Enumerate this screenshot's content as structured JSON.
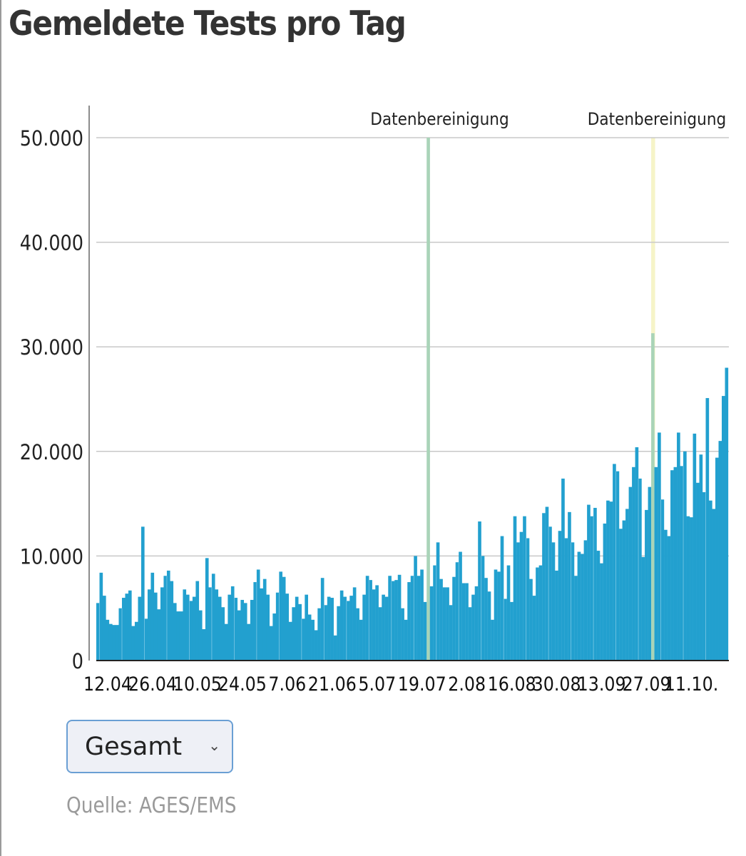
{
  "title": "Gemeldete Tests pro Tag",
  "dropdown": {
    "selected": "Gesamt"
  },
  "source": "Quelle: AGES/EMS",
  "colors": {
    "bar": "#22a0cf",
    "highlight_green": "#a9d4b8",
    "highlight_yellow": "#f6f4c8",
    "grid": "#c8c8c8"
  },
  "chart_data": {
    "type": "bar",
    "title": "Gemeldete Tests pro Tag",
    "xlabel": "",
    "ylabel": "",
    "ylim": [
      0,
      50000
    ],
    "yticks": [
      0,
      10000,
      20000,
      30000,
      40000,
      50000
    ],
    "ytick_labels": [
      "0",
      "10.000",
      "20.000",
      "30.000",
      "40.000",
      "50.000"
    ],
    "xtick_index_step": 14,
    "xtick_labels": [
      "12.04",
      "26.04",
      "10.05",
      "24.05",
      "7.06",
      "21.06",
      "5.07",
      "19.07",
      "2.08",
      "16.08",
      "30.08",
      "13.09",
      "27.09",
      "11.10."
    ],
    "grid": true,
    "values": [
      5500,
      8400,
      6200,
      3900,
      3500,
      3400,
      3400,
      5000,
      6000,
      6400,
      6700,
      3300,
      3700,
      6100,
      12800,
      4000,
      6800,
      8400,
      6500,
      4900,
      7000,
      8100,
      8600,
      7600,
      5500,
      4700,
      4700,
      6800,
      6300,
      5700,
      6100,
      7600,
      4800,
      3000,
      9800,
      7000,
      8300,
      6800,
      6100,
      5100,
      3500,
      6300,
      7100,
      6000,
      4800,
      5800,
      5500,
      3500,
      5800,
      7500,
      8700,
      6900,
      7800,
      6300,
      3300,
      4500,
      6500,
      8500,
      8000,
      6400,
      3700,
      5100,
      6100,
      5400,
      4000,
      6300,
      4400,
      3900,
      2900,
      5000,
      7900,
      5300,
      6100,
      6000,
      2400,
      5200,
      6700,
      6100,
      5700,
      6200,
      7000,
      5000,
      3900,
      6300,
      8100,
      7700,
      6800,
      7200,
      5100,
      6300,
      6100,
      8100,
      7600,
      7700,
      8200,
      5000,
      3900,
      7500,
      8100,
      10000,
      8100,
      8700,
      5600,
      50000,
      7100,
      9100,
      11300,
      7800,
      7000,
      7000,
      5300,
      8000,
      9400,
      10400,
      7400,
      7400,
      5100,
      6300,
      7100,
      13300,
      10000,
      7900,
      6600,
      3900,
      8700,
      8500,
      11900,
      5900,
      9100,
      5600,
      13800,
      11300,
      12300,
      13800,
      11700,
      7800,
      6200,
      8900,
      9100,
      14100,
      14700,
      12800,
      11300,
      8600,
      12400,
      17400,
      11700,
      14200,
      11300,
      8100,
      10400,
      10200,
      11500,
      14900,
      13800,
      14600,
      10500,
      9300,
      13100,
      15300,
      15200,
      18800,
      18100,
      12600,
      13400,
      14500,
      16600,
      18500,
      20400,
      17400,
      9900,
      14400,
      16600,
      31300,
      18500,
      21800,
      15400,
      12500,
      11900,
      18200,
      18500,
      21800,
      18600,
      20000,
      13800,
      13700,
      21700,
      17000,
      19700,
      16100,
      25100,
      15300,
      14500,
      19400,
      21000,
      25300,
      28000
    ],
    "annotations": [
      {
        "index": 103,
        "label": "Datenbereinigung",
        "band": "green"
      },
      {
        "index": 173,
        "label": "Datenbereinigung",
        "band": "yellow"
      }
    ]
  }
}
